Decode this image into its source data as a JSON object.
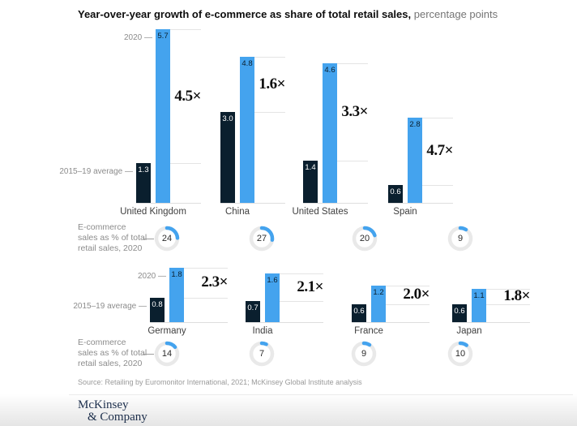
{
  "title": {
    "bold": "Year-over-year growth of e-commerce as share of total retail sales,",
    "suffix": "percentage points"
  },
  "legend": {
    "year_label": "2020 —",
    "baseline_label": "2015–19 average —",
    "gauge_label_lines": [
      "E-commerce",
      "sales as % of total",
      "retail sales, 2020"
    ]
  },
  "colors": {
    "blue": "#44a3ee",
    "navy": "#0a1f2e",
    "grid": "#e4e4e4",
    "gray_text": "#8c8c8c",
    "gauge_ring": "#e9e9e9"
  },
  "chart_data": {
    "type": "bar",
    "title": "Year-over-year growth of e-commerce as share of total retail sales, percentage points",
    "series_labels": {
      "baseline": "2015–19 average",
      "current": "2020"
    },
    "gauge_metric": "E-commerce sales as % of total retail sales, 2020",
    "ylim": [
      0,
      5.7
    ],
    "grid": "leader-lines-per-bar-top",
    "rows": [
      {
        "countries": [
          {
            "name": "United Kingdom",
            "baseline": 1.3,
            "current": 5.7,
            "multiplier": "4.5×",
            "ecommerce_share_2020": 24
          },
          {
            "name": "China",
            "baseline": 3.0,
            "current": 4.8,
            "multiplier": "1.6×",
            "ecommerce_share_2020": 27
          },
          {
            "name": "United States",
            "baseline": 1.4,
            "current": 4.6,
            "multiplier": "3.3×",
            "ecommerce_share_2020": 20
          },
          {
            "name": "Spain",
            "baseline": 0.6,
            "current": 2.8,
            "multiplier": "4.7×",
            "ecommerce_share_2020": 9
          }
        ]
      },
      {
        "countries": [
          {
            "name": "Germany",
            "baseline": 0.8,
            "current": 1.8,
            "multiplier": "2.3×",
            "ecommerce_share_2020": 14
          },
          {
            "name": "India",
            "baseline": 0.7,
            "current": 1.6,
            "multiplier": "2.1×",
            "ecommerce_share_2020": 7
          },
          {
            "name": "France",
            "baseline": 0.6,
            "current": 1.2,
            "multiplier": "2.0×",
            "ecommerce_share_2020": 9
          },
          {
            "name": "Japan",
            "baseline": 0.6,
            "current": 1.1,
            "multiplier": "1.8×",
            "ecommerce_share_2020": 10
          }
        ]
      }
    ]
  },
  "source": "Source: Retailing by Euromonitor International, 2021; McKinsey Global Institute analysis",
  "logo": {
    "line1": "McKinsey",
    "line2": "& Company"
  }
}
